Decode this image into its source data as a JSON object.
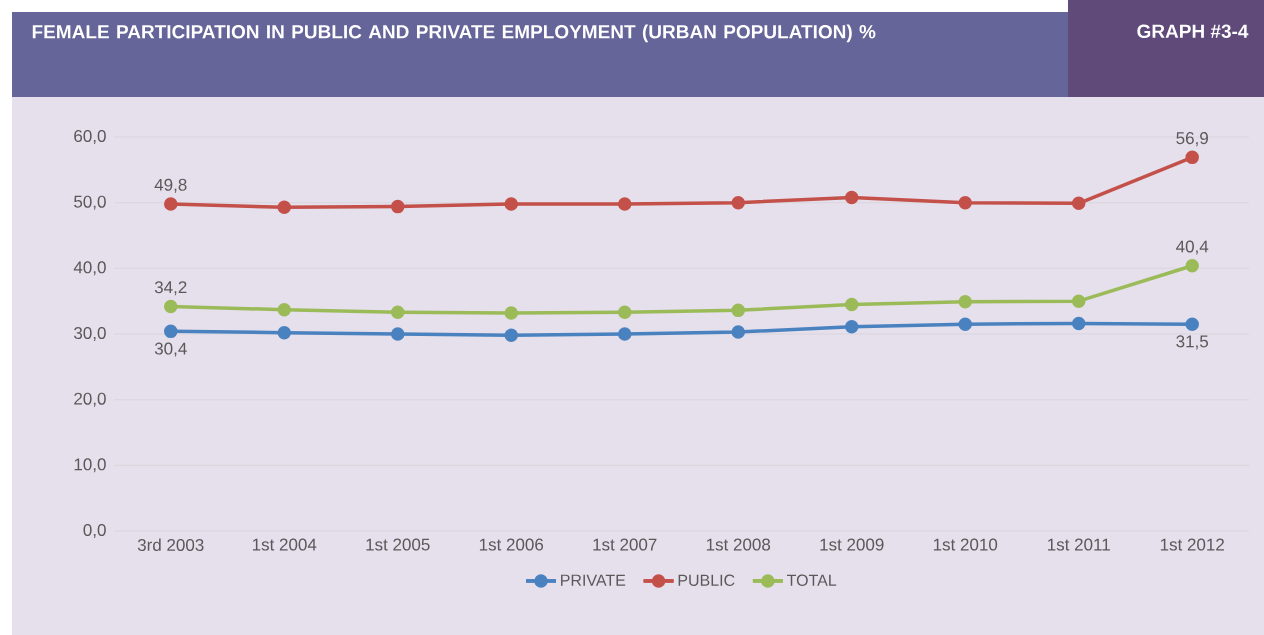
{
  "chart_data": {
    "type": "line",
    "title": "FEMALE PARTICIPATION IN PUBLIC AND PRIVATE EMPLOYMENT (URBAN POPULATION) %",
    "annotations": [
      "GRAPH #3-4"
    ],
    "categories": [
      "3rd 2003",
      "1st 2004",
      "1st 2005",
      "1st 2006",
      "1st 2007",
      "1st 2008",
      "1st 2009",
      "1st 2010",
      "1st 2011",
      "1st 2012"
    ],
    "series": [
      {
        "name": "PRIVATE",
        "color": "#4a82c0",
        "values": [
          30.4,
          30.2,
          30.0,
          29.8,
          30.0,
          30.3,
          31.1,
          31.5,
          31.6,
          31.5
        ],
        "value_labels": [
          "30,4",
          null,
          null,
          null,
          null,
          null,
          null,
          null,
          null,
          "31,5"
        ]
      },
      {
        "name": "PUBLIC",
        "color": "#c4504a",
        "values": [
          49.8,
          49.3,
          49.4,
          49.8,
          49.8,
          50.0,
          50.8,
          50.0,
          49.9,
          56.9
        ],
        "value_labels": [
          "49,8",
          null,
          null,
          null,
          null,
          null,
          null,
          null,
          null,
          "56,9"
        ]
      },
      {
        "name": "TOTAL",
        "color": "#9bbb58",
        "values": [
          34.2,
          33.7,
          33.3,
          33.2,
          33.3,
          33.6,
          34.5,
          34.9,
          35.0,
          40.4
        ],
        "value_labels": [
          "34,2",
          null,
          null,
          null,
          null,
          null,
          null,
          null,
          null,
          "40,4"
        ]
      }
    ],
    "ylim": [
      0,
      60
    ],
    "yticks": [
      {
        "value": 0,
        "label": "0,0"
      },
      {
        "value": 10,
        "label": "10,0"
      },
      {
        "value": 20,
        "label": "20,0"
      },
      {
        "value": 30,
        "label": "30,0"
      },
      {
        "value": 40,
        "label": "40,0"
      },
      {
        "value": 50,
        "label": "50,0"
      },
      {
        "value": 60,
        "label": "60,0"
      }
    ],
    "grid": "y",
    "legend": "bottom",
    "marker": "circle",
    "line_style": "solid"
  }
}
